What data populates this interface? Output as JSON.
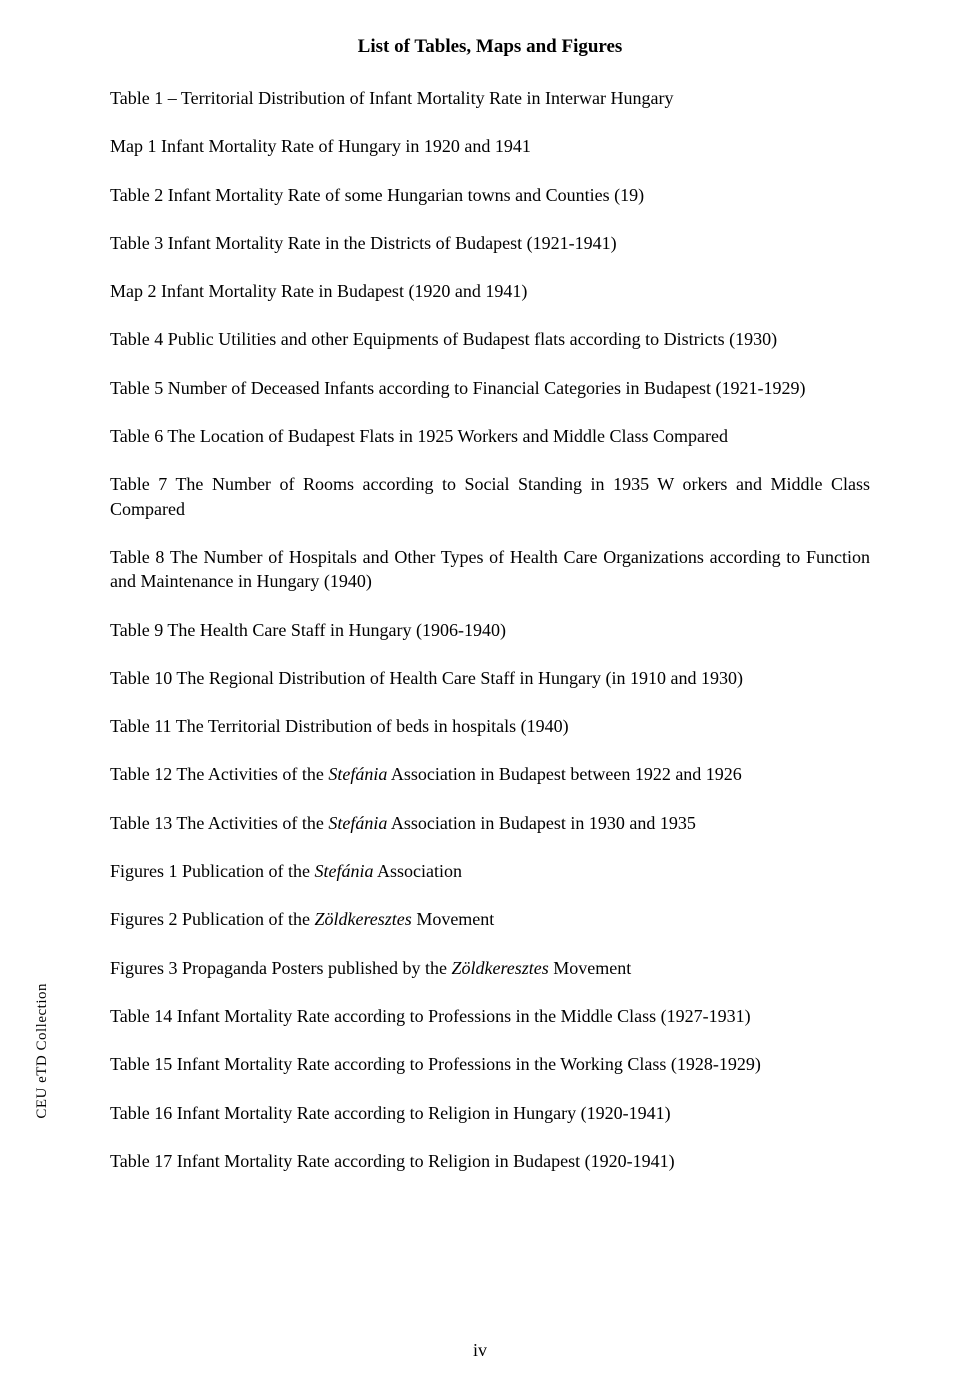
{
  "title": "List of Tables, Maps and Figures",
  "sidebar_label": "CEU eTD Collection",
  "page_number": "iv",
  "entries": [
    {
      "pre": "Table 1 – Territorial Distribution of Infant Mortality Rate in Interwar Hungary",
      "italic": "",
      "post": ""
    },
    {
      "pre": "Map 1 Infant Mortality Rate of Hungary in 1920 and 1941",
      "italic": "",
      "post": ""
    },
    {
      "pre": "Table 2 Infant Mortality Rate of some Hungarian towns and Counties (19)",
      "italic": "",
      "post": ""
    },
    {
      "pre": "Table 3 Infant Mortality Rate in the Districts of Budapest (1921-1941)",
      "italic": "",
      "post": ""
    },
    {
      "pre": "Map 2 Infant Mortality Rate in Budapest (1920 and 1941)",
      "italic": "",
      "post": ""
    },
    {
      "pre": "Table 4 Public Utilities and other Equipments of Budapest flats according to Districts (1930)",
      "italic": "",
      "post": ""
    },
    {
      "pre": "Table 5 Number of Deceased Infants according to Financial Categories in Budapest (1921-1929)",
      "italic": "",
      "post": ""
    },
    {
      "pre": "Table 6 The Location of Budapest Flats in 1925 Workers and Middle Class Compared",
      "italic": "",
      "post": ""
    },
    {
      "pre": "Table 7 The Number of Rooms according to Social Standing in 1935 W orkers and Middle Class Compared",
      "italic": "",
      "post": ""
    },
    {
      "pre": "Table 8 The Number of Hospitals and Other Types of Health Care Organizations according to Function and Maintenance in Hungary (1940)",
      "italic": "",
      "post": ""
    },
    {
      "pre": "Table 9 The Health Care Staff in Hungary (1906-1940)",
      "italic": "",
      "post": ""
    },
    {
      "pre": "Table 10 The Regional Distribution of Health Care Staff in Hungary (in 1910 and 1930)",
      "italic": "",
      "post": ""
    },
    {
      "pre": "Table 11 The Territorial Distribution of beds in hospitals (1940)",
      "italic": "",
      "post": ""
    },
    {
      "pre": "Table 12 The Activities of the ",
      "italic": "Stefánia",
      "post": " Association in Budapest between 1922 and 1926"
    },
    {
      "pre": "Table 13 The Activities of the ",
      "italic": "Stefánia",
      "post": " Association in Budapest in 1930 and 1935"
    },
    {
      "pre": "Figures 1 Publication of the ",
      "italic": "Stefánia",
      "post": " Association"
    },
    {
      "pre": "Figures 2 Publication of the ",
      "italic": "Zöldkeresztes",
      "post": " Movement"
    },
    {
      "pre": "Figures 3 Propaganda Posters published by the ",
      "italic": "Zöldkeresztes",
      "post": " Movement"
    },
    {
      "pre": "Table 14 Infant Mortality Rate according to Professions in the Middle Class (1927-1931)",
      "italic": "",
      "post": ""
    },
    {
      "pre": "Table 15 Infant Mortality Rate according to Professions in the Working Class (1928-1929)",
      "italic": "",
      "post": ""
    },
    {
      "pre": "Table 16 Infant Mortality Rate according to Religion in Hungary (1920-1941)",
      "italic": "",
      "post": ""
    },
    {
      "pre": "Table 17 Infant Mortality Rate according to Religion in Budapest (1920-1941)",
      "italic": "",
      "post": ""
    }
  ]
}
